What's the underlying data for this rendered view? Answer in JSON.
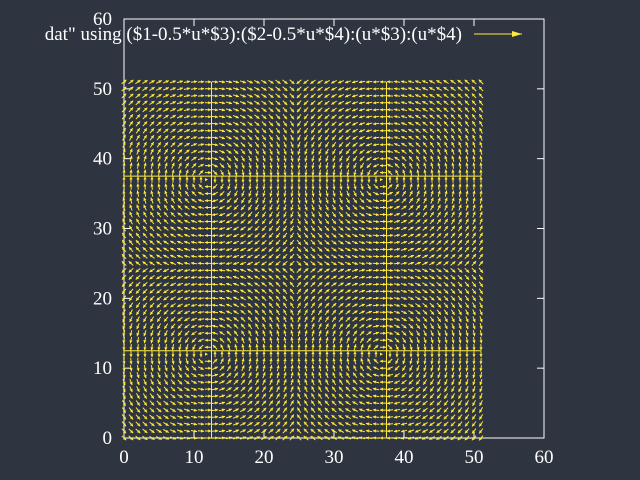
{
  "chart_data": {
    "type": "vector_field",
    "title": "",
    "xlabel": "",
    "ylabel": "",
    "xlim": [
      0,
      60
    ],
    "ylim": [
      0,
      60
    ],
    "x_ticks": [
      "0",
      "10",
      "20",
      "30",
      "40",
      "50",
      "60"
    ],
    "y_ticks": [
      "0",
      "10",
      "20",
      "30",
      "40",
      "50",
      "60"
    ],
    "grid": false,
    "legend": {
      "position": "top-right",
      "label": "dat\" using ($1-0.5*u*$3):($2-0.5*u*$4):(u*$3):(u*$4)"
    },
    "series": [
      {
        "name": "dat\" using ($1-0.5*u*$3):($2-0.5*u*$4):(u*$3):(u*$4)",
        "color": "#ffea3d",
        "x_range": [
          0,
          51
        ],
        "y_range": [
          0,
          51
        ],
        "x_step": 1,
        "y_step": 1,
        "arrow_length": 0.9,
        "centers_x": [
          12.5,
          37.5
        ],
        "centers_y": [
          12.5,
          37.5
        ],
        "field": "swirl"
      }
    ],
    "colors": {
      "background": "#2e3440",
      "axis": "#ffffff",
      "arrows": "#ffea3d"
    }
  }
}
